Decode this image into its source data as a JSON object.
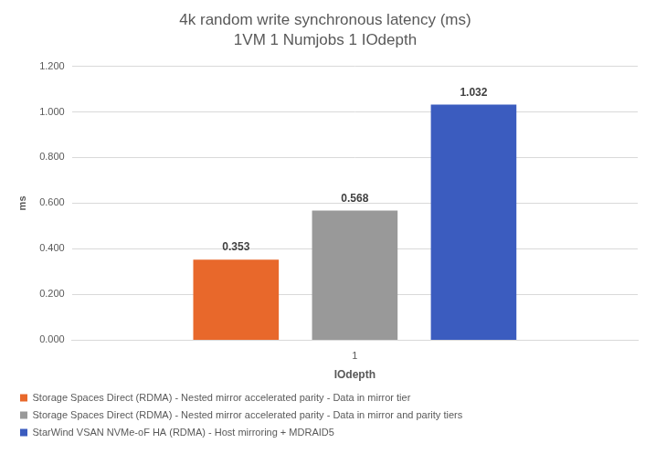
{
  "chart_data": {
    "type": "bar",
    "title": "4k random write synchronous latency (ms)",
    "subtitle": "1VM 1 Numjobs 1 IOdepth",
    "x_label": "IOdepth",
    "y_label": "ms",
    "categories": [
      "1"
    ],
    "series": [
      {
        "name": "Storage Spaces Direct (RDMA) - Nested mirror accelerated parity - Data in mirror tier",
        "color": "#e8682b",
        "values": [
          0.353
        ]
      },
      {
        "name": "Storage Spaces Direct (RDMA) - Nested mirror accelerated parity - Data in mirror and parity tiers",
        "color": "#999999",
        "values": [
          0.568
        ]
      },
      {
        "name": "StarWind VSAN NVMe-oF HA (RDMA) - Host mirroring + MDRAID5",
        "color": "#3b5cbf",
        "values": [
          1.032
        ]
      }
    ],
    "ylim": [
      0,
      1.2
    ],
    "yticks": [
      {
        "value": 0,
        "label": "0.000"
      },
      {
        "value": 0.2,
        "label": "0.200"
      },
      {
        "value": 0.4,
        "label": "0.400"
      },
      {
        "value": 0.6,
        "label": "0.600"
      },
      {
        "value": 0.8,
        "label": "0.800"
      },
      {
        "value": 1.0,
        "label": "1.000"
      },
      {
        "value": 1.2,
        "label": "1.200"
      }
    ],
    "grid": true,
    "legend": "bottom",
    "data_labels": true
  }
}
